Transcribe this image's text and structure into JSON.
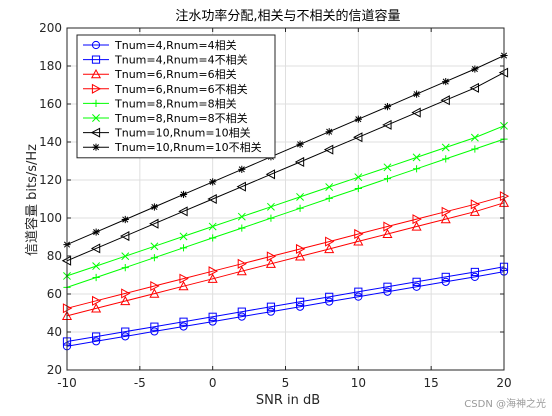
{
  "chart_data": {
    "type": "line",
    "title": "注水功率分配,相关与不相关的信道容量",
    "xlabel": "SNR in dB",
    "ylabel": "信道容量 bits/s/Hz",
    "xlim": [
      -10,
      20
    ],
    "ylim": [
      20,
      200
    ],
    "xticks": [
      -10,
      -5,
      0,
      5,
      10,
      15,
      20
    ],
    "yticks": [
      20,
      40,
      60,
      80,
      100,
      120,
      140,
      160,
      180,
      200
    ],
    "grid": true,
    "legend_position": "top-left",
    "x": [
      -10,
      -8,
      -6,
      -4,
      -2,
      0,
      2,
      4,
      6,
      8,
      10,
      12,
      14,
      16,
      18,
      20
    ],
    "series": [
      {
        "name": "Tnum=4,Rnum=4相关",
        "color": "#0000ff",
        "marker": "circle",
        "values": [
          32.5,
          35.1,
          37.7,
          40.3,
          42.9,
          45.5,
          48.1,
          50.7,
          53.3,
          56.0,
          58.6,
          61.2,
          63.8,
          66.4,
          69.0,
          71.8
        ]
      },
      {
        "name": "Tnum=4,Rnum=4不相关",
        "color": "#0000ff",
        "marker": "square",
        "values": [
          35.0,
          37.6,
          40.2,
          42.8,
          45.4,
          48.0,
          50.7,
          53.3,
          55.9,
          58.5,
          61.2,
          63.8,
          66.4,
          69.0,
          71.6,
          74.3
        ]
      },
      {
        "name": "Tnum=6,Rnum=6相关",
        "color": "#ff0000",
        "marker": "triangle-up",
        "values": [
          48.5,
          52.4,
          56.3,
          60.2,
          64.1,
          68.0,
          72.0,
          75.9,
          79.8,
          83.7,
          87.7,
          91.6,
          95.5,
          99.4,
          103.3,
          108.0
        ]
      },
      {
        "name": "Tnum=6,Rnum=6不相关",
        "color": "#ff0000",
        "marker": "triangle-right",
        "values": [
          52.5,
          56.4,
          60.3,
          64.2,
          68.1,
          72.0,
          75.9,
          79.8,
          83.7,
          87.6,
          91.6,
          95.5,
          99.4,
          103.3,
          107.2,
          111.5
        ]
      },
      {
        "name": "Tnum=8,Rnum=8相关",
        "color": "#00ff00",
        "marker": "plus",
        "values": [
          63.5,
          68.7,
          73.9,
          79.1,
          84.3,
          89.5,
          94.7,
          99.9,
          105.1,
          110.3,
          115.5,
          120.7,
          125.9,
          131.1,
          136.3,
          141.5
        ]
      },
      {
        "name": "Tnum=8,Rnum=8不相关",
        "color": "#00ff00",
        "marker": "x",
        "values": [
          69.5,
          74.7,
          79.9,
          85.1,
          90.3,
          95.5,
          100.7,
          105.9,
          111.1,
          116.3,
          121.5,
          126.7,
          131.9,
          137.1,
          142.3,
          148.5
        ]
      },
      {
        "name": "Tnum=10,Rnum=10相关",
        "color": "#000000",
        "marker": "triangle-left",
        "values": [
          77.5,
          84.0,
          90.5,
          97.0,
          103.5,
          110.0,
          116.5,
          123.0,
          129.5,
          136.0,
          142.5,
          149.0,
          155.5,
          162.0,
          168.5,
          176.5
        ]
      },
      {
        "name": "Tnum=10,Rnum=10不相关",
        "color": "#000000",
        "marker": "asterisk",
        "values": [
          86.0,
          92.6,
          99.2,
          105.8,
          112.4,
          119.0,
          125.6,
          132.2,
          138.8,
          145.4,
          152.0,
          158.6,
          165.2,
          171.8,
          178.4,
          185.5
        ]
      }
    ]
  },
  "watermark": "CSDN @海神之光"
}
